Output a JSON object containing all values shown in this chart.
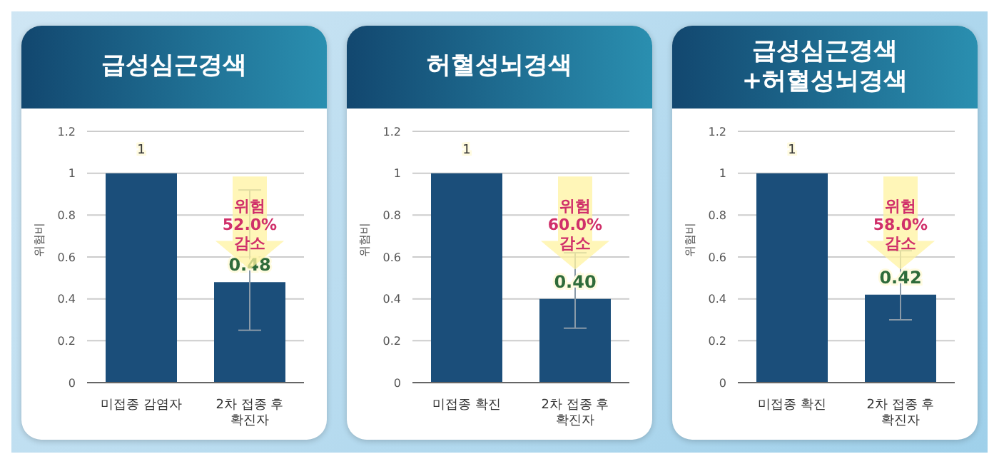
{
  "chart_data": [
    {
      "type": "bar",
      "title": "급성심근경색",
      "ylabel": "위험비",
      "categories": [
        "미접종 감염자",
        "2차 접종 후\n확진자"
      ],
      "values": [
        1,
        0.48
      ],
      "color": "#1b4e7a",
      "errors": [
        null,
        [
          0.25,
          0.92
        ]
      ],
      "value_labels": [
        "1",
        "0.48"
      ],
      "ylim": [
        0,
        1.2
      ],
      "yticks": [
        0,
        0.2,
        0.4,
        0.6,
        0.8,
        1,
        1.2
      ],
      "grid": "y",
      "legend": false,
      "annotations": [
        "위험 52.0% 감소"
      ]
    },
    {
      "type": "bar",
      "title": "허혈성뇌경색",
      "ylabel": "위험비",
      "categories": [
        "미접종 확진",
        "2차 접종 후\n확진자"
      ],
      "values": [
        1,
        0.4
      ],
      "color": "#1b4e7a",
      "errors": [
        null,
        [
          0.26,
          0.62
        ]
      ],
      "value_labels": [
        "1",
        "0.40"
      ],
      "ylim": [
        0,
        1.2
      ],
      "yticks": [
        0,
        0.2,
        0.4,
        0.6,
        0.8,
        1,
        1.2
      ],
      "grid": "y",
      "legend": false,
      "annotations": [
        "위험 60.0% 감소"
      ]
    },
    {
      "type": "bar",
      "title": "급성심근경색\n+허혈성뇌경색",
      "ylabel": "위험비",
      "categories": [
        "미접종 확진",
        "2차 접종 후\n확진자"
      ],
      "values": [
        1,
        0.42
      ],
      "color": "#1b4e7a",
      "errors": [
        null,
        [
          0.3,
          0.63
        ]
      ],
      "value_labels": [
        "1",
        "0.42"
      ],
      "ylim": [
        0,
        1.2
      ],
      "yticks": [
        0,
        0.2,
        0.4,
        0.6,
        0.8,
        1,
        1.2
      ],
      "grid": "y",
      "legend": false,
      "annotations": [
        "위험 58.0% 감소"
      ]
    }
  ]
}
